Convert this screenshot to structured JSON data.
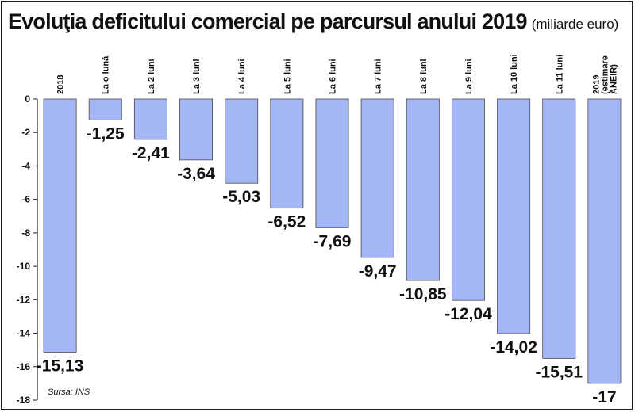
{
  "header": {
    "title": "Evoluţia deficitului comercial pe parcursul anului 2019",
    "unit": "(miliarde euro)"
  },
  "source": "Sursa: INS",
  "colors": {
    "bar": "#a4b6f6",
    "bar_edge": "#4a4a4a",
    "text": "#111111",
    "axis": "#222222"
  },
  "chart_data": {
    "type": "bar",
    "title": "Evoluţia deficitului comercial pe parcursul anului 2019",
    "categories": [
      [
        "2018"
      ],
      [
        "La o lună"
      ],
      [
        "La 2 luni"
      ],
      [
        "La 3 luni"
      ],
      [
        "La 4 luni"
      ],
      [
        "La 5 luni"
      ],
      [
        "La 6 luni"
      ],
      [
        "La 7 luni"
      ],
      [
        "La 8 luni"
      ],
      [
        "La 9 luni"
      ],
      [
        "La 10 luni"
      ],
      [
        "La 11 luni"
      ],
      [
        "2019",
        "(estimare",
        "ANEIR)"
      ]
    ],
    "values": [
      -15.13,
      -1.25,
      -2.41,
      -3.64,
      -5.03,
      -6.52,
      -7.69,
      -9.47,
      -10.85,
      -12.04,
      -14.02,
      -15.51,
      -17
    ],
    "value_labels": [
      "-15,13",
      "-1,25",
      "-2,41",
      "-3,64",
      "-5,03",
      "-6,52",
      "-7,69",
      "-9,47",
      "-10,85",
      "-12,04",
      "-14,02",
      "-15,51",
      "-17"
    ],
    "ylim": [
      -18,
      0
    ],
    "yticks": [
      0,
      -2,
      -4,
      -6,
      -8,
      -10,
      -12,
      -14,
      -16,
      -18
    ],
    "ytick_labels": [
      "0",
      "-2",
      "-4",
      "-6",
      "-8",
      "-10",
      "-12",
      "-14",
      "-16",
      "-18"
    ],
    "xlabel": "",
    "ylabel": "",
    "grid": false,
    "legend": "none"
  }
}
